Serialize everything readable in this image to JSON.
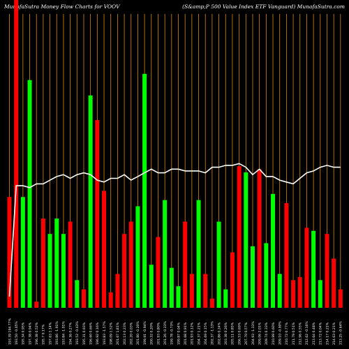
{
  "chart_data": {
    "type": "bar",
    "title": "MunafaSutra  Money Flow  Charts for VOOV",
    "subtitle": "(S&amp;P 500  Value   Index ETF Vanguard) MunafaSutra.com",
    "categories": [
      "193.39  194.77%",
      "193.50  -0.05%",
      "195.34  0.95%",
      "197.38 0.94%",
      "196.38 0.52%",
      "195.7 0.17%",
      "197.63 1.14%",
      "193.86  -1.91%",
      "193.84  -1.01%",
      "194.36  0.27%",
      "193.52  -0.43%",
      "195.31  0.93%",
      "196.60  0.66%",
      "196.92  0.16%",
      "193.83  -1.57%",
      "198.09  1.52%",
      "201.67  1.81%",
      "202.13  0.23%",
      "202.20  0.03%",
      "201.80  -0.20%",
      "199.91  -0.94%",
      "200.32  0.20%",
      "201.93  0.80%",
      "201.26  -0.33%",
      "199.78  -0.73%",
      "199.87  0.04%",
      "201.68  0.91%",
      "201.93  0.12%",
      "204.37  1.21%",
      "204.69  0.15%",
      "202.37  -1.13%",
      "202.86  0.24%",
      "203.38  0.26%",
      "205.11  0.85%",
      "206.53  0.69%",
      "207.70  0.57%",
      "204.93  -1.33%",
      "209.06  2.01%",
      "209.74  0.33%",
      "210.99  0.60%",
      "209.10  -0.90%",
      "210.72  0.77%",
      "211.79  0.51%",
      "212.96  0.55%",
      "212.62  -0.16%",
      "213.64  0.48%",
      "213.72  0.04%",
      "214.17  0.21%",
      "214.63  0.21%",
      "213.25  -0.64%"
    ],
    "directions": [
      "down",
      "down",
      "up",
      "up",
      "down",
      "down",
      "up",
      "up",
      "up",
      "down",
      "up",
      "down",
      "up",
      "down",
      "down",
      "down",
      "down",
      "down",
      "down",
      "up",
      "up",
      "up",
      "down",
      "up",
      "up",
      "up",
      "down",
      "down",
      "up",
      "down",
      "down",
      "up",
      "up",
      "down",
      "down",
      "up",
      "up",
      "down",
      "up",
      "up",
      "up",
      "down",
      "down",
      "down",
      "down",
      "up",
      "up",
      "down",
      "down",
      "down"
    ],
    "flow": [
      0.36,
      1.0,
      0.36,
      0.74,
      0.02,
      0.29,
      0.24,
      0.29,
      0.24,
      0.28,
      0.09,
      0.06,
      0.69,
      0.61,
      0.38,
      0.05,
      0.11,
      0.24,
      0.28,
      0.33,
      0.76,
      0.14,
      0.23,
      0.35,
      0.13,
      0.07,
      0.28,
      0.11,
      0.35,
      0.11,
      0.03,
      0.28,
      0.06,
      0.18,
      0.46,
      0.44,
      0.2,
      0.45,
      0.21,
      0.37,
      0.11,
      0.34,
      0.09,
      0.1,
      0.26,
      0.25,
      0.09,
      0.24,
      0.16,
      0.06
    ],
    "price_line": [
      0.06,
      0.66,
      0.66,
      0.65,
      0.67,
      0.67,
      0.69,
      0.71,
      0.72,
      0.7,
      0.72,
      0.73,
      0.72,
      0.69,
      0.68,
      0.7,
      0.7,
      0.72,
      0.69,
      0.71,
      0.73,
      0.75,
      0.73,
      0.73,
      0.75,
      0.75,
      0.74,
      0.74,
      0.74,
      0.73,
      0.76,
      0.76,
      0.77,
      0.77,
      0.78,
      0.76,
      0.72,
      0.75,
      0.71,
      0.71,
      0.69,
      0.68,
      0.67,
      0.7,
      0.73,
      0.74,
      0.76,
      0.77,
      0.76,
      0.76
    ],
    "colors": {
      "up": "#00ff00",
      "down": "#ff0000",
      "grid": "#d98c00",
      "line": "#ffffff",
      "background": "#000000"
    },
    "grid": true
  }
}
